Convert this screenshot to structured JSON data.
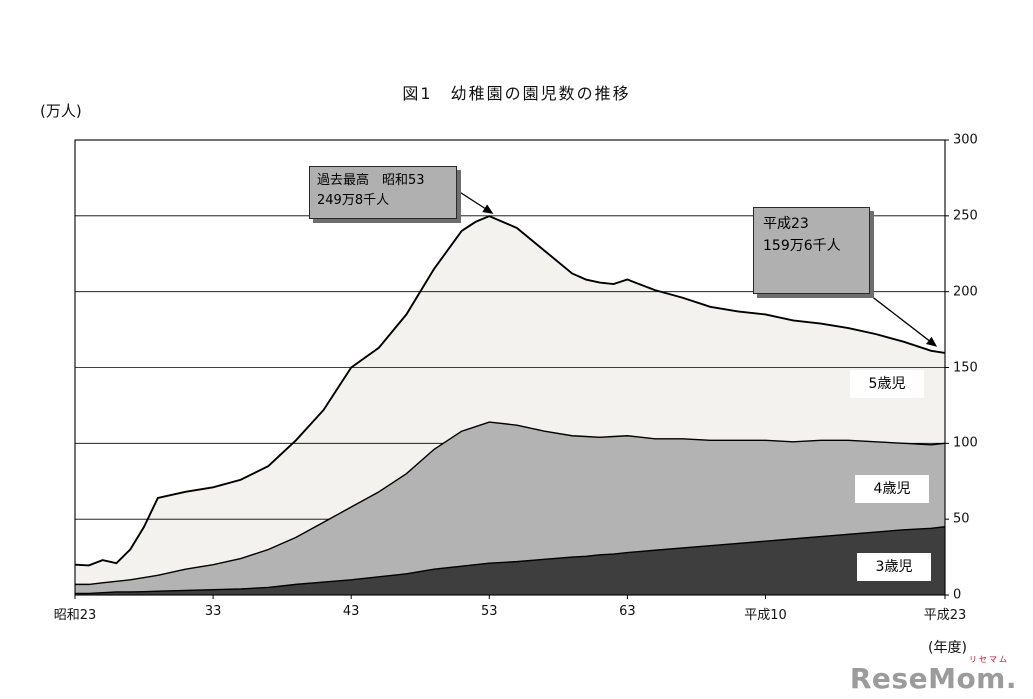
{
  "chart_data": {
    "type": "area",
    "stacked": true,
    "title": "図1　幼稚園の園児数の推移",
    "ylabel": "(万人)",
    "xlabel": "(年度)",
    "ylim": [
      0,
      300
    ],
    "yticks": [
      0,
      50,
      100,
      150,
      200,
      250,
      300
    ],
    "grid": true,
    "xtick_labels": [
      "昭和23",
      "33",
      "43",
      "53",
      "63",
      "平成10",
      "平成23"
    ],
    "xtick_years": [
      1948,
      1958,
      1968,
      1978,
      1988,
      1998,
      2011
    ],
    "x": [
      1948,
      1949,
      1950,
      1951,
      1952,
      1953,
      1954,
      1956,
      1958,
      1960,
      1962,
      1964,
      1966,
      1968,
      1970,
      1972,
      1974,
      1976,
      1977,
      1978,
      1980,
      1982,
      1984,
      1985,
      1986,
      1987,
      1988,
      1990,
      1992,
      1994,
      1996,
      1998,
      2000,
      2002,
      2004,
      2006,
      2008,
      2010,
      2011
    ],
    "series": [
      {
        "name": "3歳児",
        "color": "#3e3e3e",
        "values": [
          1.0,
          1.0,
          1.5,
          2.0,
          2.0,
          2.2,
          2.5,
          3.0,
          3.5,
          4.0,
          5.0,
          7.0,
          8.5,
          10.0,
          12.0,
          14.0,
          17.0,
          19.0,
          20.0,
          21.0,
          22.0,
          23.5,
          25.0,
          25.5,
          26.5,
          27.0,
          28.0,
          29.5,
          31.0,
          32.5,
          34.0,
          35.5,
          37.0,
          38.5,
          40.0,
          41.5,
          43.0,
          44.0,
          45.0
        ]
      },
      {
        "name": "4歳児",
        "color": "#b3b3b3",
        "values": [
          6.0,
          6.0,
          6.5,
          7.0,
          8.0,
          9.3,
          10.5,
          14.0,
          16.5,
          20.0,
          25.0,
          31.0,
          39.5,
          48.0,
          56.0,
          66.0,
          79.0,
          89.0,
          91.0,
          93.0,
          90.0,
          84.5,
          80.0,
          79.0,
          77.5,
          77.5,
          77.0,
          73.5,
          72.0,
          69.5,
          68.0,
          66.5,
          64.0,
          63.5,
          62.0,
          59.5,
          57.0,
          55.0,
          55.0
        ]
      },
      {
        "name": "5歳児",
        "color": "#f3f2ef",
        "values": [
          13.0,
          12.5,
          15.0,
          12.0,
          20.0,
          33.5,
          51.0,
          51.0,
          51.0,
          52.0,
          55.0,
          64.0,
          74.0,
          92.0,
          95.0,
          105.0,
          119.0,
          132.0,
          135.0,
          135.8,
          130.0,
          119.0,
          107.0,
          103.5,
          102.0,
          100.5,
          103.0,
          98.0,
          93.0,
          88.0,
          85.0,
          83.0,
          80.0,
          77.0,
          74.0,
          71.0,
          67.0,
          62.0,
          59.6
        ]
      }
    ],
    "annotations": [
      {
        "lines": [
          "過去最高　昭和53",
          "249万8千人"
        ],
        "target_year": 1978,
        "target_value": 249.8
      },
      {
        "lines": [
          "平成23",
          "159万6千人"
        ],
        "target_year": 2011,
        "target_value": 159.6
      }
    ]
  },
  "watermark": {
    "ruby": "リセマム",
    "name": "ReseMom",
    "dot": "."
  }
}
